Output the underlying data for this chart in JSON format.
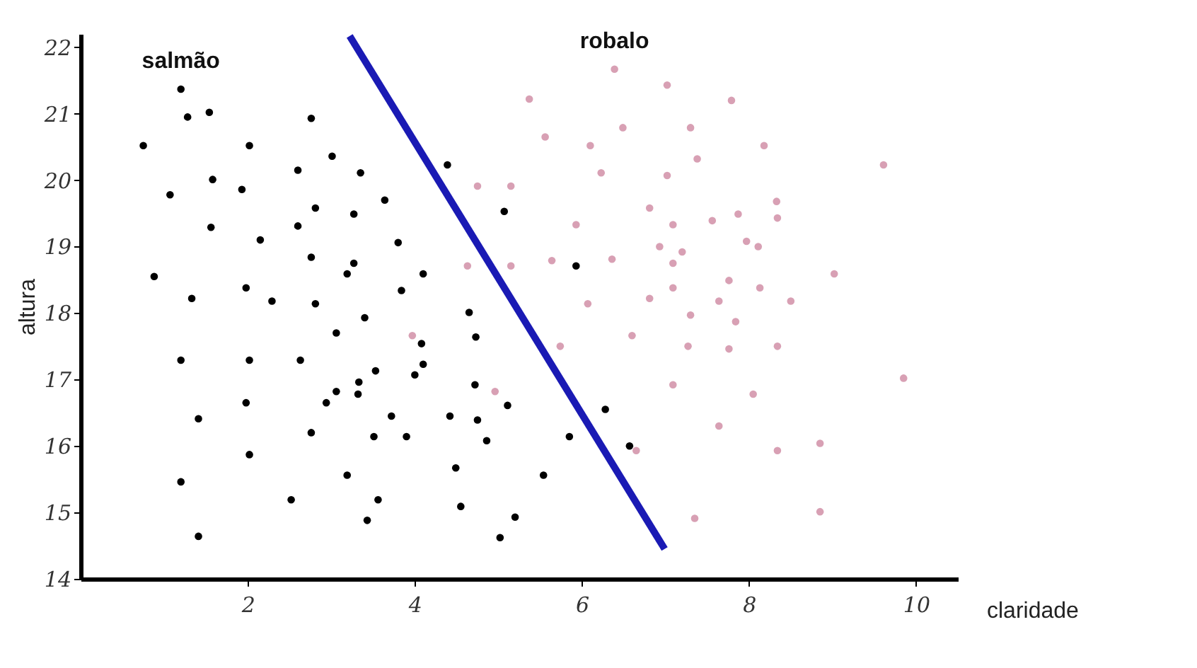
{
  "chart_data": {
    "type": "scatter",
    "xlabel": "claridade",
    "ylabel": "altura",
    "xlim": [
      0,
      10.5
    ],
    "ylim": [
      14,
      22.2
    ],
    "xticks": [
      2,
      4,
      6,
      8,
      10
    ],
    "yticks": [
      14,
      15,
      16,
      17,
      18,
      19,
      20,
      21,
      22
    ],
    "marker": "circle",
    "series": [
      {
        "name": "salmão",
        "color": "#000000",
        "x": [
          1.2,
          1.28,
          1.54,
          2.76,
          0.75,
          2.02,
          3.01,
          2.6,
          3.35,
          1.58,
          1.07,
          1.93,
          2.81,
          3.27,
          1.56,
          2.6,
          2.15,
          2.76,
          3.27,
          3.19,
          0.88,
          1.33,
          1.98,
          2.29,
          2.81,
          3.4,
          3.06,
          4.39,
          3.64,
          5.07,
          3.8,
          4.1,
          3.84,
          5.93,
          4.65,
          4.73,
          4.08,
          4.1,
          4.0,
          3.53,
          3.33,
          3.32,
          4.72,
          5.11,
          3.72,
          4.42,
          4.75,
          3.51,
          3.9,
          4.86,
          5.85,
          6.28,
          6.57,
          4.49,
          5.54,
          3.56,
          4.55,
          3.43,
          5.2,
          5.02,
          1.2,
          2.02,
          2.63,
          3.06,
          1.98,
          2.94,
          1.41,
          2.76,
          2.02,
          3.19,
          1.2,
          2.52,
          1.41
        ],
        "values": [
          21.37,
          20.95,
          21.02,
          20.93,
          20.52,
          20.52,
          20.36,
          20.15,
          20.11,
          20.01,
          19.78,
          19.86,
          19.58,
          19.49,
          19.29,
          19.31,
          19.1,
          18.84,
          18.75,
          18.59,
          18.55,
          18.22,
          18.38,
          18.18,
          18.14,
          17.93,
          17.7,
          20.23,
          19.7,
          19.53,
          19.06,
          18.59,
          18.34,
          18.71,
          18.01,
          17.64,
          17.54,
          17.23,
          17.07,
          17.13,
          16.96,
          16.78,
          16.92,
          16.61,
          16.45,
          16.45,
          16.39,
          16.14,
          16.14,
          16.08,
          16.14,
          16.55,
          16.0,
          15.67,
          15.56,
          15.19,
          15.09,
          14.88,
          14.93,
          14.62,
          17.29,
          17.29,
          17.29,
          16.82,
          16.65,
          16.65,
          16.41,
          16.2,
          15.87,
          15.56,
          15.46,
          15.19,
          14.64
        ]
      },
      {
        "name": "robalo",
        "color": "#d8a0b4",
        "x": [
          6.39,
          7.02,
          5.37,
          6.49,
          5.56,
          6.1,
          6.23,
          7.02,
          4.75,
          5.15,
          6.81,
          5.93,
          7.09,
          6.93,
          7.09,
          6.36,
          5.64,
          4.63,
          5.15,
          7.09,
          6.81,
          6.07,
          6.6,
          3.97,
          7.79,
          7.3,
          8.18,
          7.38,
          9.61,
          8.33,
          7.87,
          8.34,
          7.56,
          7.97,
          8.11,
          7.2,
          9.02,
          7.76,
          8.13,
          7.64,
          8.5,
          7.3,
          7.84,
          7.27,
          7.76,
          8.34,
          9.85,
          7.09,
          8.05,
          7.64,
          8.34,
          8.85,
          7.35,
          8.85,
          5.74,
          4.96,
          6.65
        ],
        "values": [
          21.67,
          21.43,
          21.22,
          20.79,
          20.65,
          20.52,
          20.11,
          20.07,
          19.91,
          19.91,
          19.58,
          19.33,
          19.33,
          19.0,
          18.75,
          18.81,
          18.79,
          18.71,
          18.71,
          18.38,
          18.22,
          18.14,
          17.66,
          17.66,
          21.2,
          20.79,
          20.52,
          20.32,
          20.23,
          19.68,
          19.49,
          19.43,
          19.39,
          19.08,
          19.0,
          18.92,
          18.59,
          18.49,
          18.38,
          18.18,
          18.18,
          17.97,
          17.87,
          17.5,
          17.46,
          17.5,
          17.02,
          16.92,
          16.78,
          16.3,
          15.93,
          16.04,
          14.91,
          15.01,
          17.5,
          16.82,
          15.93
        ]
      },
      {
        "type": "line",
        "color": "#1a1ab4",
        "line_style": "solid",
        "marker": "none",
        "x": [
          3.22,
          6.99
        ],
        "values": [
          22.17,
          14.45
        ]
      }
    ]
  }
}
